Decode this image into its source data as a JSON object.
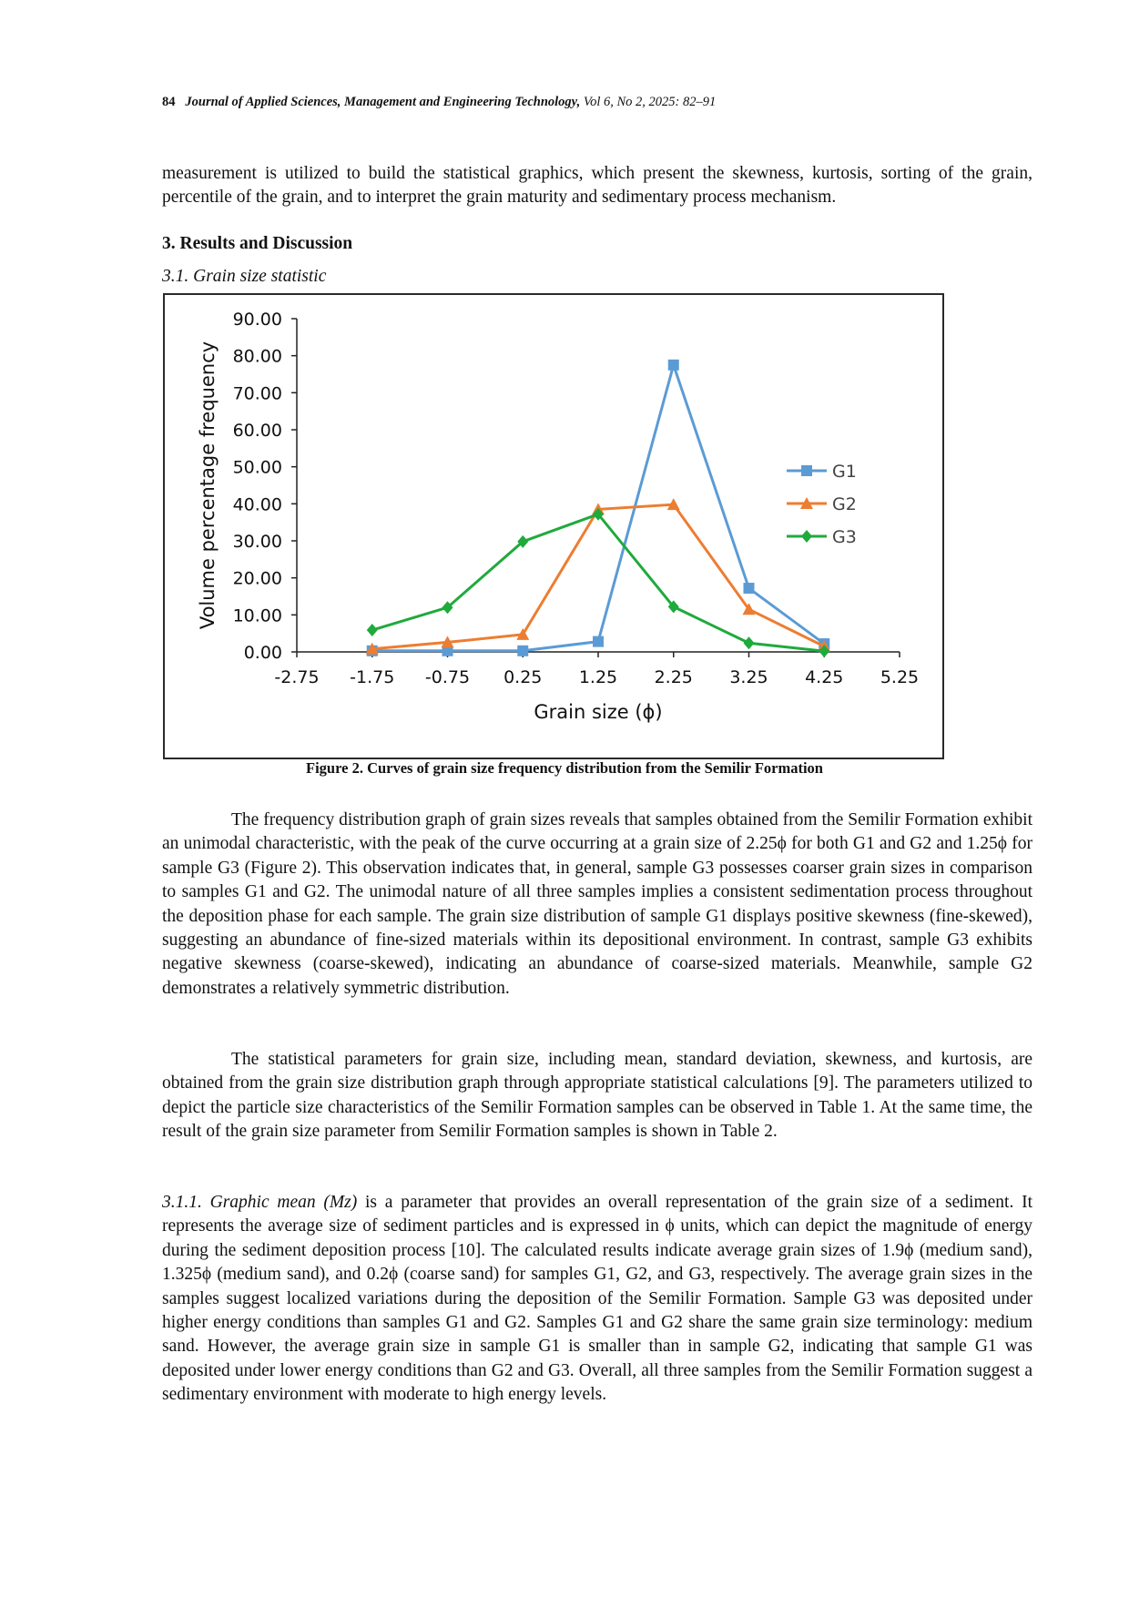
{
  "header": {
    "page_number": "84",
    "journal": "Journal of Applied Sciences, Management and Engineering Technology,",
    "volume": "Vol 6, No 2, 2025: 82–91"
  },
  "intro_paragraph": "measurement is utilized to build the statistical graphics, which present the skewness, kurtosis, sorting of the grain, percentile of the grain, and to interpret the grain maturity and sedimentary process mechanism.",
  "section_heading": "3. Results and Discussion",
  "subsection_heading": "3.1. Grain size statistic",
  "figure_caption": "Figure 2. Curves of grain size frequency distribution from the Semilir Formation",
  "chart_data": {
    "type": "line",
    "xlabel": "Grain size (ϕ)",
    "ylabel": "Volume percentage frequency",
    "xlim": [
      -2.75,
      5.25
    ],
    "ylim": [
      0,
      90
    ],
    "x_ticks": [
      -2.75,
      -1.75,
      -0.75,
      0.25,
      1.25,
      2.25,
      3.25,
      4.25,
      5.25
    ],
    "x_tick_labels": [
      "-2.75",
      "-1.75",
      "-0.75",
      "0.25",
      "1.25",
      "2.25",
      "3.25",
      "4.25",
      "5.25"
    ],
    "y_ticks": [
      0,
      10,
      20,
      30,
      40,
      50,
      60,
      70,
      80,
      90
    ],
    "y_tick_labels": [
      "0.00",
      "10.00",
      "20.00",
      "30.00",
      "40.00",
      "50.00",
      "60.00",
      "70.00",
      "80.00",
      "90.00"
    ],
    "grid": false,
    "legend_position": "right",
    "x": [
      -1.75,
      -0.75,
      0.25,
      1.25,
      2.25,
      3.25,
      4.25
    ],
    "series": [
      {
        "name": "G1",
        "color": "#5b9bd5",
        "marker": "square",
        "values": [
          0.3,
          0.3,
          0.3,
          2.8,
          77.5,
          17.2,
          2.2
        ]
      },
      {
        "name": "G2",
        "color": "#ed7d31",
        "marker": "triangle",
        "values": [
          0.8,
          2.6,
          4.7,
          38.5,
          39.8,
          11.5,
          1.5
        ]
      },
      {
        "name": "G3",
        "color": "#1faa3c",
        "marker": "diamond",
        "values": [
          5.9,
          12.0,
          29.8,
          37.2,
          12.2,
          2.4,
          0.2
        ]
      }
    ]
  },
  "paragraph_1": "The frequency distribution graph of grain sizes reveals that samples obtained from the Semilir Formation exhibit an unimodal characteristic, with the peak of the curve occurring at a grain size of 2.25ϕ for both G1 and G2 and 1.25ϕ for sample G3 (Figure 2). This observation indicates that, in general, sample G3 possesses coarser grain sizes in comparison to samples G1 and G2. The unimodal nature of all three samples implies a consistent sedimentation process throughout the deposition phase for each sample. The grain size distribution of sample G1 displays positive skewness (fine-skewed), suggesting an abundance of fine-sized materials within its depositional environment. In contrast, sample G3 exhibits negative skewness (coarse-skewed), indicating an abundance of coarse-sized materials. Meanwhile, sample G2 demonstrates a relatively symmetric distribution.",
  "paragraph_2": "The statistical parameters for grain size, including mean, standard deviation, skewness, and kurtosis, are obtained from the grain size distribution graph through appropriate statistical calculations [9]. The parameters utilized to depict the particle size characteristics of the Semilir Formation samples can be observed in Table 1. At the same time, the result of the grain size parameter from Semilir Formation samples is shown in Table 2.",
  "paragraph_3_lead": "3.1.1. Graphic mean (Mz)",
  "paragraph_3": " is a parameter that provides an overall representation of the grain size of a sediment. It represents the average size of sediment particles and is expressed in ϕ units, which can depict the magnitude of energy during the sediment deposition process [10]. The calculated results indicate average grain sizes of 1.9ϕ (medium sand), 1.325ϕ (medium sand), and 0.2ϕ (coarse sand) for samples G1, G2, and G3, respectively. The average grain sizes in the samples suggest localized variations during the deposition of the Semilir Formation. Sample G3 was deposited under higher energy conditions than samples G1 and G2. Samples G1 and G2 share the same grain size terminology: medium sand. However, the average grain size in sample G1 is smaller than in sample G2, indicating that sample G1 was deposited under lower energy conditions than G2 and G3. Overall, all three samples from the Semilir Formation suggest a sedimentary environment with moderate to high energy levels."
}
